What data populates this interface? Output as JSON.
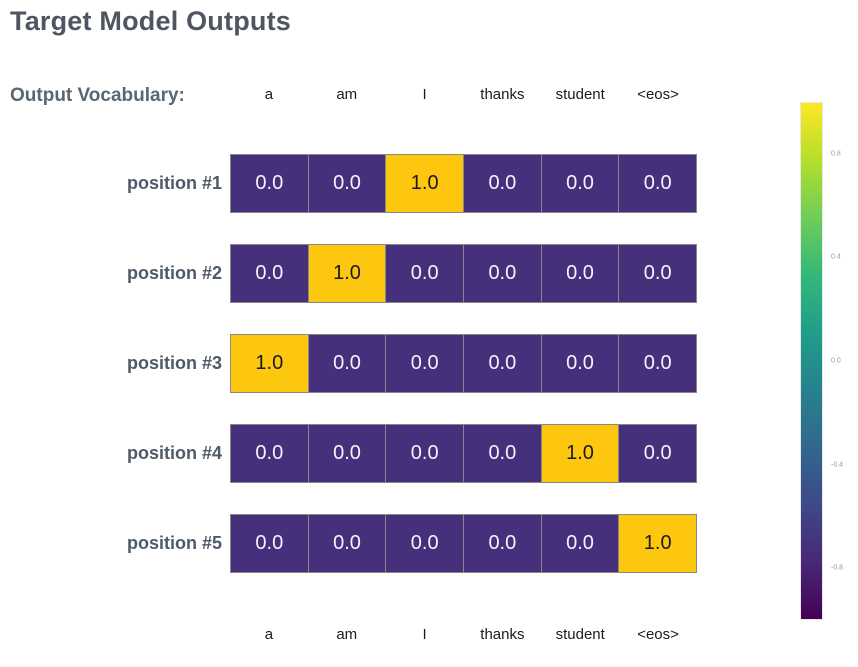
{
  "title": "Target Model Outputs",
  "output_vocabulary_label": "Output Vocabulary:",
  "chart_data": {
    "type": "heatmap",
    "title": "Target Model Outputs",
    "columns": [
      "a",
      "am",
      "I",
      "thanks",
      "student",
      "<eos>"
    ],
    "rows": [
      "position #1",
      "position #2",
      "position #3",
      "position #4",
      "position #5"
    ],
    "values": [
      [
        0.0,
        0.0,
        1.0,
        0.0,
        0.0,
        0.0
      ],
      [
        0.0,
        1.0,
        0.0,
        0.0,
        0.0,
        0.0
      ],
      [
        1.0,
        0.0,
        0.0,
        0.0,
        0.0,
        0.0
      ],
      [
        0.0,
        0.0,
        0.0,
        0.0,
        1.0,
        0.0
      ],
      [
        0.0,
        0.0,
        0.0,
        0.0,
        0.0,
        1.0
      ]
    ],
    "layout": {
      "grid": "off",
      "legend": "none",
      "colorbar_position": "right",
      "column_labels_shown": "top and bottom"
    },
    "colorbar": {
      "colormap": "viridis",
      "min": -1.0,
      "max": 1.0,
      "ticks": [
        {
          "value": 0.8,
          "label": "0.8"
        },
        {
          "value": 0.4,
          "label": "0.4"
        },
        {
          "value": 0.0,
          "label": "0.0"
        },
        {
          "value": -0.4,
          "label": "-0.4"
        },
        {
          "value": -0.8,
          "label": "-0.8"
        }
      ]
    },
    "colors": {
      "cell_low": "#46307c",
      "cell_high": "#fcc70e",
      "cell_border": "#888888",
      "text_on_low": "#f5f3fa",
      "text_on_high": "#1a1a1a",
      "title_color": "#4d5661",
      "vocab_label_color": "#5a6770",
      "row_label_color": "#4e5a67",
      "column_header_color": "#1b1b1b",
      "tick_label_color": "#999999",
      "viridis_stops_top_to_bottom": [
        "#fde725",
        "#b5de2b",
        "#6ece58",
        "#35b779",
        "#1f9e89",
        "#26828e",
        "#31688e",
        "#3e4989",
        "#482878",
        "#440154"
      ]
    }
  }
}
